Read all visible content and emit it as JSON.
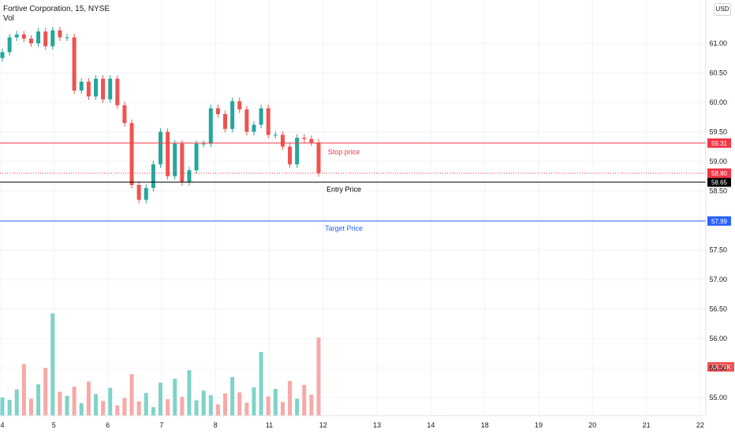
{
  "header": {
    "title": "Fortive Corporation, 15, NYSE",
    "vol_label": "Vol",
    "currency": "USD"
  },
  "chart_data": {
    "type": "candlestick",
    "title": "Fortive Corporation, 15, NYSE",
    "x_tick_labels": [
      "4",
      "5",
      "6",
      "7",
      "8",
      "11",
      "12",
      "13",
      "14",
      "18",
      "19",
      "20",
      "21",
      "22"
    ],
    "y_tick_labels": [
      "61.00",
      "60.50",
      "60.00",
      "59.50",
      "59.00",
      "58.50",
      "57.50",
      "57.00",
      "56.50",
      "56.00",
      "55.50",
      "55.00"
    ],
    "ylim": [
      54.8,
      61.6
    ],
    "horizontal_levels": [
      {
        "name": "Stop price",
        "value": 59.31,
        "color": "#f23645",
        "label_badge": "59.31"
      },
      {
        "name": "Entry Price",
        "value": 58.65,
        "color": "#000000",
        "label_badge": "58.65"
      },
      {
        "name": "Target Price",
        "value": 57.99,
        "color": "#2962ff",
        "label_badge": "57.99"
      }
    ],
    "last_price": {
      "value": 58.8,
      "label": "58.80",
      "color": "#f23645"
    },
    "volume_label": "13.76K",
    "up_color": "#26a69a",
    "down_color": "#ef5350",
    "closes": [
      60.85,
      61.1,
      61.15,
      61.08,
      61.0,
      61.2,
      60.95,
      61.22,
      61.1,
      61.1,
      60.2,
      60.35,
      60.1,
      60.4,
      60.05,
      60.4,
      59.95,
      59.65,
      58.6,
      58.35,
      58.55,
      58.95,
      59.5,
      58.75,
      59.3,
      58.65,
      58.85,
      59.3,
      59.3,
      59.9,
      59.8,
      59.55,
      60.02,
      59.88,
      59.5,
      59.62,
      59.9,
      59.45,
      59.45,
      59.25,
      58.95,
      59.4,
      59.38,
      59.32,
      58.8
    ],
    "volumes": [
      3.2,
      2.8,
      4.6,
      9.1,
      3.0,
      5.5,
      8.4,
      18.0,
      4.2,
      3.5,
      5.1,
      2.2,
      6.0,
      3.8,
      2.6,
      4.9,
      1.8,
      3.1,
      7.3,
      2.5,
      4.0,
      1.5,
      5.8,
      2.9,
      6.5,
      3.3,
      8.0,
      2.7,
      4.4,
      3.6,
      2.0,
      3.9,
      6.8,
      4.1,
      2.3,
      5.0,
      11.2,
      3.4,
      4.7,
      2.4,
      6.1,
      3.0,
      5.4,
      3.7,
      13.76
    ]
  }
}
